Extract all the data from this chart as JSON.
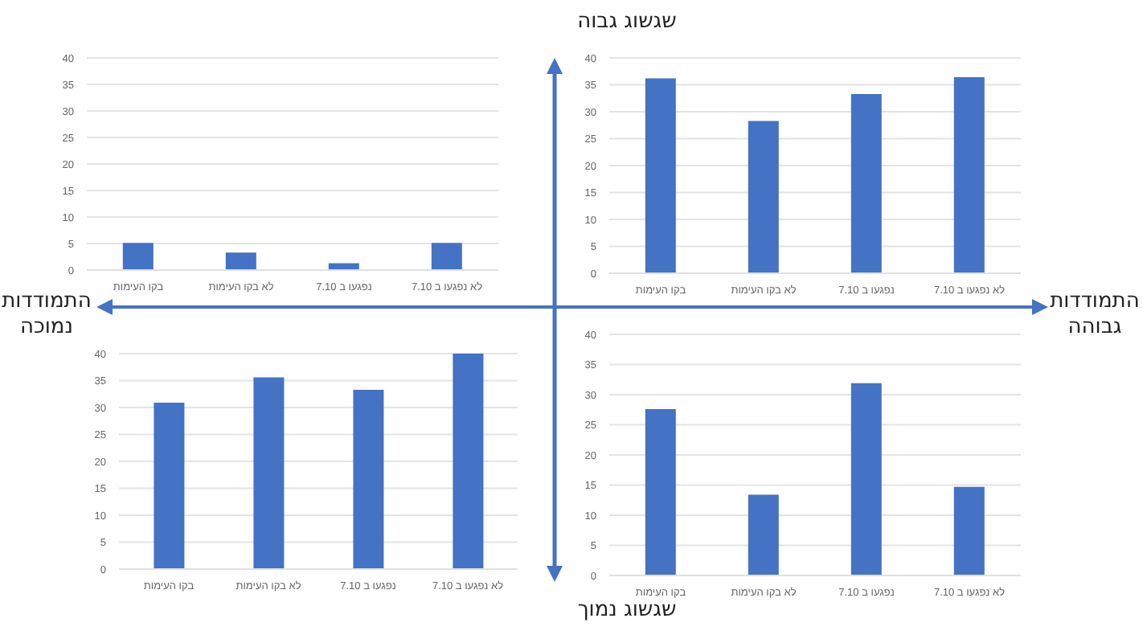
{
  "chart_data": [
    {
      "type": "bar",
      "categories": [
        "בקו העימות",
        "לא בקו העימות",
        "נפגעו ב 7.10",
        "לא נפגעו ב 7.10"
      ],
      "values": [
        5.1,
        3.3,
        1.3,
        5.1
      ],
      "color": "#4472c4",
      "ylim": [
        0,
        40
      ],
      "yticks": [
        0,
        5,
        10,
        15,
        20,
        25,
        30,
        35,
        40
      ],
      "grid": "y"
    },
    {
      "type": "bar",
      "categories": [
        "בקו העימות",
        "לא בקו העימות",
        "נפגעו ב 7.10",
        "לא נפגעו ב 7.10"
      ],
      "values": [
        36.2,
        28.3,
        33.3,
        36.4
      ],
      "color": "#4472c4",
      "ylim": [
        0,
        40
      ],
      "yticks": [
        0,
        5,
        10,
        15,
        20,
        25,
        30,
        35,
        40
      ],
      "grid": "y"
    },
    {
      "type": "bar",
      "categories": [
        "בקו העימות",
        "לא בקו העימות",
        "נפגעו ב 7.10",
        "לא נפגעו ב 7.10"
      ],
      "values": [
        30.9,
        35.6,
        33.3,
        40
      ],
      "color": "#4472c4",
      "ylim": [
        0,
        40
      ],
      "yticks": [
        0,
        5,
        10,
        15,
        20,
        25,
        30,
        35,
        40
      ],
      "grid": "y"
    },
    {
      "type": "bar",
      "categories": [
        "בקו העימות",
        "לא בקו העימות",
        "נפגעו ב 7.10",
        "לא נפגעו ב 7.10"
      ],
      "values": [
        27.6,
        13.4,
        31.9,
        14.7
      ],
      "color": "#4472c4",
      "ylim": [
        0,
        40
      ],
      "yticks": [
        0,
        5,
        10,
        15,
        20,
        25,
        30,
        35,
        40
      ],
      "grid": "y"
    },
    {
      "type": "other",
      "annotations": [
        "שגשוג גבוה",
        "שגשוג נמוך",
        "התמודדות נמוכה",
        "התמודדות גבוהה"
      ]
    }
  ]
}
